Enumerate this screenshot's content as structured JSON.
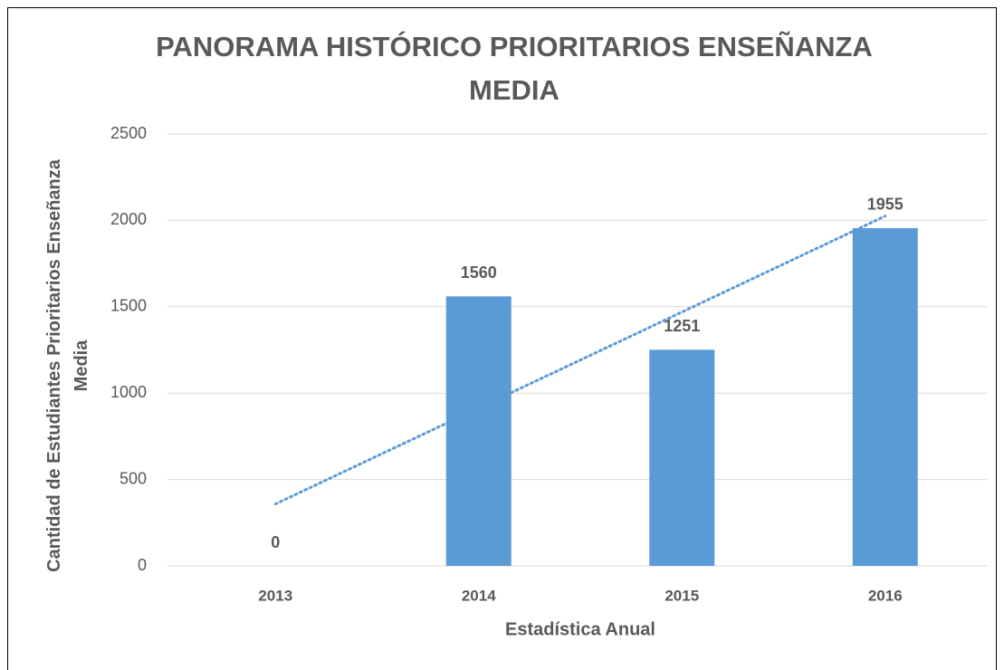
{
  "chart_data": {
    "type": "bar",
    "title": "PANORAMA HISTÓRICO PRIORITARIOS ENSEÑANZA MEDIA",
    "x_label": "Estadística Anual",
    "y_label": "Cantidad de Estudiantes Prioritarios Enseñanza Media",
    "categories": [
      "2013",
      "2014",
      "2015",
      "2016"
    ],
    "values": [
      0,
      1560,
      1251,
      1955
    ],
    "color": "#5b9bd5",
    "ylim": [
      0,
      2500
    ],
    "yticks": [
      0,
      500,
      1000,
      1500,
      2000,
      2500
    ],
    "grid": true,
    "trendline": true
  }
}
